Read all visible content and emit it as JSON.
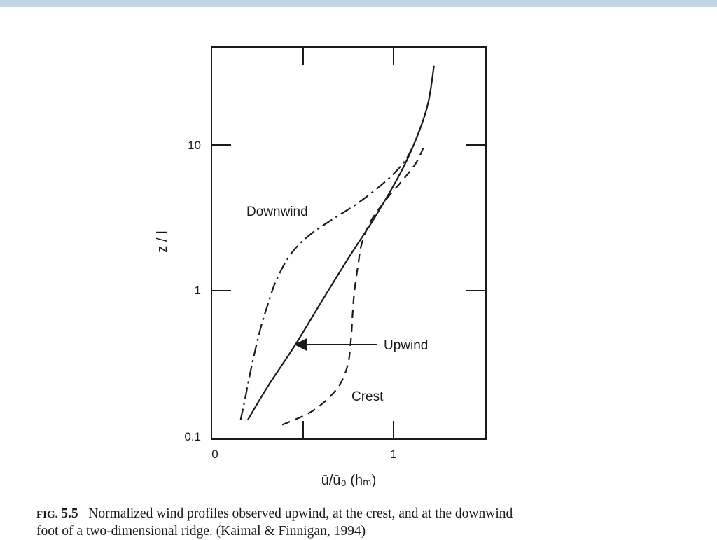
{
  "slide": {
    "accent_bar_color": "#c5d5e8"
  },
  "figure": {
    "caption_label_prefix": "FIG.",
    "caption_label_number": "5.5",
    "caption_line1": "Normalized wind profiles observed upwind, at the crest, and at the downwind",
    "caption_line2": "foot of a two-dimensional ridge. (Kaimal & Finnigan, 1994)"
  },
  "chart_data": {
    "type": "line",
    "title": "",
    "xlabel": "ū/ū₀ (hₘ)",
    "ylabel": "z / l",
    "y_scale": "log",
    "xlim": [
      0,
      1.5
    ],
    "ylim": [
      0.1,
      40
    ],
    "x_tick_labels": [
      "0",
      "1"
    ],
    "y_tick_labels": [
      "0.1",
      "1",
      "10"
    ],
    "grid": false,
    "series": [
      {
        "name": "Upwind",
        "style": "solid",
        "color": "#1a1a1a",
        "points": [
          [
            0.19,
            0.13
          ],
          [
            0.3,
            0.22
          ],
          [
            0.45,
            0.42
          ],
          [
            0.6,
            0.85
          ],
          [
            0.75,
            1.7
          ],
          [
            0.9,
            3.3
          ],
          [
            1.05,
            7.0
          ],
          [
            1.14,
            12.6
          ],
          [
            1.19,
            20
          ],
          [
            1.22,
            35
          ]
        ]
      },
      {
        "name": "Crest",
        "style": "dashed",
        "color": "#1a1a1a",
        "points": [
          [
            0.38,
            0.12
          ],
          [
            0.55,
            0.15
          ],
          [
            0.68,
            0.21
          ],
          [
            0.74,
            0.3
          ],
          [
            0.76,
            0.45
          ],
          [
            0.77,
            0.7
          ],
          [
            0.78,
            1.0
          ],
          [
            0.8,
            1.5
          ],
          [
            0.82,
            2.1
          ],
          [
            0.87,
            3.0
          ],
          [
            0.96,
            4.3
          ],
          [
            1.05,
            5.8
          ],
          [
            1.12,
            7.5
          ],
          [
            1.16,
            9.5
          ]
        ]
      },
      {
        "name": "Downwind",
        "style": "dash-dot",
        "color": "#1a1a1a",
        "points": [
          [
            0.15,
            0.13
          ],
          [
            0.17,
            0.17
          ],
          [
            0.21,
            0.3
          ],
          [
            0.26,
            0.55
          ],
          [
            0.3,
            0.8
          ],
          [
            0.35,
            1.2
          ],
          [
            0.43,
            1.8
          ],
          [
            0.53,
            2.4
          ],
          [
            0.66,
            3.1
          ],
          [
            0.8,
            4.0
          ],
          [
            0.95,
            5.6
          ],
          [
            1.05,
            7.5
          ],
          [
            1.1,
            9.6
          ],
          [
            1.14,
            12.6
          ]
        ]
      }
    ],
    "annotations": [
      {
        "text": "Downwind",
        "anchor": [
          0.34,
          3.0
        ]
      },
      {
        "text": "Upwind",
        "anchor": [
          0.95,
          0.4
        ],
        "arrow_to": [
          0.46,
          0.4
        ]
      },
      {
        "text": "Crest",
        "anchor": [
          0.77,
          0.18
        ]
      }
    ]
  }
}
